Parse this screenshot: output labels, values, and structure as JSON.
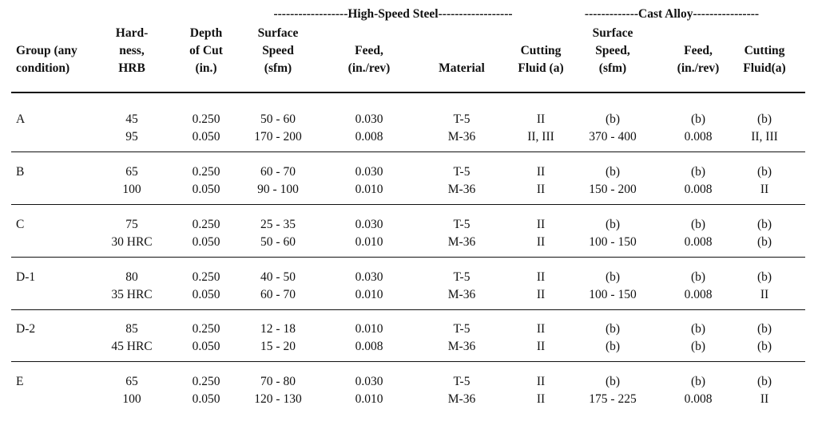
{
  "groups": {
    "hss": "------------------High-Speed Steel------------------",
    "cast": "-------------Cast Alloy----------------"
  },
  "headers": [
    [
      "Group (any",
      "condition)"
    ],
    [
      "Hard-",
      "ness,",
      "HRB"
    ],
    [
      "Depth",
      "of Cut",
      "(in.)"
    ],
    [
      "Surface",
      "Speed",
      "(sfm)"
    ],
    [
      "Feed,",
      "(in./rev)"
    ],
    [
      "Material"
    ],
    [
      "Cutting",
      "Fluid (a)"
    ],
    [
      "Surface",
      "Speed,",
      "(sfm)"
    ],
    [
      "Feed,",
      "(in./rev)"
    ],
    [
      "Cutting",
      "Fluid(a)"
    ]
  ],
  "rows": [
    {
      "group": "A",
      "lines": [
        [
          "45",
          "0.250",
          "50 - 60",
          "0.030",
          "T-5",
          "II",
          "(b)",
          "(b)",
          "(b)"
        ],
        [
          "95",
          "0.050",
          "170 - 200",
          "0.008",
          "M-36",
          "II, III",
          "370 - 400",
          "0.008",
          "II, III"
        ]
      ]
    },
    {
      "group": "B",
      "lines": [
        [
          "65",
          "0.250",
          "60 - 70",
          "0.030",
          "T-5",
          "II",
          "(b)",
          "(b)",
          "(b)"
        ],
        [
          "100",
          "0.050",
          "90 - 100",
          "0.010",
          "M-36",
          "II",
          "150 - 200",
          "0.008",
          "II"
        ]
      ]
    },
    {
      "group": "C",
      "lines": [
        [
          "75",
          "0.250",
          "25 - 35",
          "0.030",
          "T-5",
          "II",
          "(b)",
          "(b)",
          "(b)"
        ],
        [
          "30 HRC",
          "0.050",
          "50 - 60",
          "0.010",
          "M-36",
          "II",
          "100 - 150",
          "0.008",
          "(b)"
        ]
      ]
    },
    {
      "group": "D-1",
      "lines": [
        [
          "80",
          "0.250",
          "40 - 50",
          "0.030",
          "T-5",
          "II",
          "(b)",
          "(b)",
          "(b)"
        ],
        [
          "35 HRC",
          "0.050",
          "60 - 70",
          "0.010",
          "M-36",
          "II",
          "100 - 150",
          "0.008",
          "II"
        ]
      ]
    },
    {
      "group": "D-2",
      "lines": [
        [
          "85",
          "0.250",
          "12 - 18",
          "0.010",
          "T-5",
          "II",
          "(b)",
          "(b)",
          "(b)"
        ],
        [
          "45 HRC",
          "0.050",
          "15 - 20",
          "0.008",
          "M-36",
          "II",
          "(b)",
          "(b)",
          "(b)"
        ]
      ]
    },
    {
      "group": "E",
      "lines": [
        [
          "65",
          "0.250",
          "70 - 80",
          "0.030",
          "T-5",
          "II",
          "(b)",
          "(b)",
          "(b)"
        ],
        [
          "100",
          "0.050",
          "120 - 130",
          "0.010",
          "M-36",
          "II",
          "175 - 225",
          "0.008",
          "II"
        ]
      ]
    }
  ]
}
